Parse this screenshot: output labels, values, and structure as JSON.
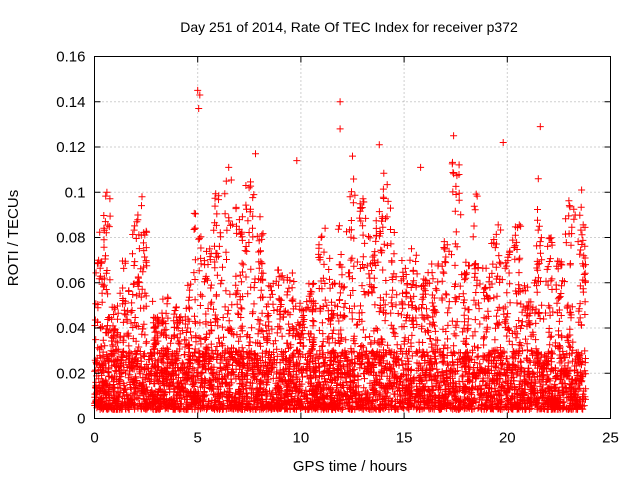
{
  "chart_data": {
    "type": "scatter",
    "title": "Day 251 of 2014, Rate Of TEC Index for receiver p372",
    "xlabel": "GPS time / hours",
    "ylabel": "ROTI / TECUs",
    "xlim": [
      0,
      25
    ],
    "ylim": [
      0,
      0.16
    ],
    "x_ticks": [
      0,
      5,
      10,
      15,
      20,
      25
    ],
    "x_tick_labels": [
      "0",
      "5",
      "10",
      "15",
      "20",
      "25"
    ],
    "y_ticks": [
      0,
      0.02,
      0.04,
      0.06,
      0.08,
      0.1,
      0.12,
      0.14,
      0.16
    ],
    "y_tick_labels": [
      "0",
      "0.02",
      "0.04",
      "0.06",
      "0.08",
      "0.1",
      "0.12",
      "0.14",
      "0.16"
    ],
    "grid": true,
    "marker": "+",
    "color": "#ff0000",
    "data_range_x": [
      0,
      23.8
    ],
    "highlights": [
      {
        "x": 5.0,
        "y": 0.145
      },
      {
        "x": 5.1,
        "y": 0.143
      },
      {
        "x": 5.05,
        "y": 0.137
      },
      {
        "x": 11.9,
        "y": 0.14
      },
      {
        "x": 11.9,
        "y": 0.128
      },
      {
        "x": 21.6,
        "y": 0.129
      },
      {
        "x": 17.4,
        "y": 0.125
      },
      {
        "x": 19.8,
        "y": 0.122
      },
      {
        "x": 13.8,
        "y": 0.121
      },
      {
        "x": 12.5,
        "y": 0.116
      },
      {
        "x": 7.8,
        "y": 0.117
      },
      {
        "x": 9.8,
        "y": 0.114
      },
      {
        "x": 15.8,
        "y": 0.111
      },
      {
        "x": 6.5,
        "y": 0.111
      },
      {
        "x": 21.5,
        "y": 0.106
      },
      {
        "x": 23.6,
        "y": 0.101
      },
      {
        "x": 0.6,
        "y": 0.1
      },
      {
        "x": 2.3,
        "y": 0.098
      }
    ],
    "peak_envelope": [
      {
        "x": 0.3,
        "y": 0.07
      },
      {
        "x": 0.6,
        "y": 0.1
      },
      {
        "x": 1.0,
        "y": 0.05
      },
      {
        "x": 1.5,
        "y": 0.07
      },
      {
        "x": 2.0,
        "y": 0.095
      },
      {
        "x": 2.4,
        "y": 0.098
      },
      {
        "x": 3.0,
        "y": 0.045
      },
      {
        "x": 3.4,
        "y": 0.055
      },
      {
        "x": 4.0,
        "y": 0.05
      },
      {
        "x": 4.5,
        "y": 0.06
      },
      {
        "x": 5.0,
        "y": 0.095
      },
      {
        "x": 5.5,
        "y": 0.075
      },
      {
        "x": 6.0,
        "y": 0.1
      },
      {
        "x": 6.5,
        "y": 0.11
      },
      {
        "x": 7.0,
        "y": 0.09
      },
      {
        "x": 7.5,
        "y": 0.11
      },
      {
        "x": 8.0,
        "y": 0.095
      },
      {
        "x": 8.5,
        "y": 0.06
      },
      {
        "x": 9.0,
        "y": 0.07
      },
      {
        "x": 9.5,
        "y": 0.065
      },
      {
        "x": 10.0,
        "y": 0.05
      },
      {
        "x": 10.5,
        "y": 0.06
      },
      {
        "x": 11.0,
        "y": 0.085
      },
      {
        "x": 11.5,
        "y": 0.075
      },
      {
        "x": 12.0,
        "y": 0.09
      },
      {
        "x": 12.5,
        "y": 0.11
      },
      {
        "x": 13.0,
        "y": 0.1
      },
      {
        "x": 13.5,
        "y": 0.09
      },
      {
        "x": 14.0,
        "y": 0.115
      },
      {
        "x": 14.5,
        "y": 0.085
      },
      {
        "x": 15.0,
        "y": 0.07
      },
      {
        "x": 15.5,
        "y": 0.08
      },
      {
        "x": 16.0,
        "y": 0.065
      },
      {
        "x": 16.5,
        "y": 0.07
      },
      {
        "x": 17.0,
        "y": 0.08
      },
      {
        "x": 17.5,
        "y": 0.115
      },
      {
        "x": 18.0,
        "y": 0.07
      },
      {
        "x": 18.5,
        "y": 0.1
      },
      {
        "x": 19.0,
        "y": 0.07
      },
      {
        "x": 19.5,
        "y": 0.09
      },
      {
        "x": 20.0,
        "y": 0.075
      },
      {
        "x": 20.5,
        "y": 0.09
      },
      {
        "x": 21.0,
        "y": 0.06
      },
      {
        "x": 21.5,
        "y": 0.1
      },
      {
        "x": 22.0,
        "y": 0.08
      },
      {
        "x": 22.5,
        "y": 0.07
      },
      {
        "x": 23.0,
        "y": 0.1
      },
      {
        "x": 23.6,
        "y": 0.095
      }
    ],
    "baseline_min": 0.004,
    "dense_band": [
      0.004,
      0.03
    ]
  }
}
